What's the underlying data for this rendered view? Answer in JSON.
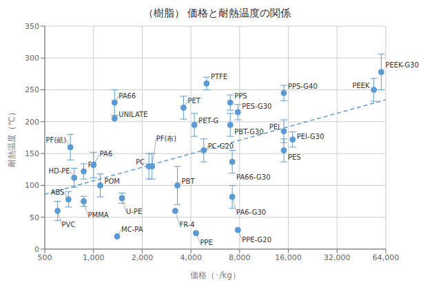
{
  "chart_data": {
    "type": "scatter",
    "title": "（樹脂） 価格と耐熱温度の関係",
    "xlabel": "価格（･/kg）",
    "ylabel": "耐熱温度（℃）",
    "log": "x",
    "grid": true,
    "color": "#5B9BD5",
    "xlim": [
      500,
      64000
    ],
    "ylim": [
      0,
      350
    ],
    "xticks": [
      500,
      {
        "value": 1000,
        "label": "1,000"
      },
      {
        "value": 2000,
        "label": "2,000"
      },
      {
        "value": 4000,
        "label": "4,000"
      },
      {
        "value": 8000,
        "label": "8,000"
      },
      {
        "value": 16000,
        "label": "16,000"
      },
      {
        "value": 32000,
        "label": "32,000"
      },
      {
        "value": 64000,
        "label": "64,000"
      }
    ],
    "yticks": [
      0,
      50,
      100,
      150,
      200,
      250,
      300,
      350
    ],
    "points": [
      {
        "label": "PVC",
        "x": 600,
        "y": 60,
        "yerr": 15
      },
      {
        "label": "ABS",
        "x": 700,
        "y": 78,
        "yerr": 12
      },
      {
        "label": "HD-PE",
        "x": 760,
        "y": 112,
        "yerr": 15
      },
      {
        "label": "PP",
        "x": 870,
        "y": 122,
        "yerr": 12
      },
      {
        "label": "PF(紙)",
        "x": 720,
        "y": 160,
        "yerr": 20
      },
      {
        "label": "PMMA",
        "x": 870,
        "y": 75,
        "yerr": 8
      },
      {
        "label": "PA6",
        "x": 1000,
        "y": 132,
        "yerr": 20
      },
      {
        "label": "POM",
        "x": 1100,
        "y": 100,
        "yerr": 18
      },
      {
        "label": "PA66",
        "x": 1350,
        "y": 230,
        "yerr": 20
      },
      {
        "label": "UNILATE",
        "x": 1350,
        "y": 205,
        "yerr": 0
      },
      {
        "label": "U-PE",
        "x": 1500,
        "y": 80,
        "yerr": 8
      },
      {
        "label": "MC-PA",
        "x": 1400,
        "y": 20,
        "yerr": 0
      },
      {
        "label": "PC",
        "x": 2200,
        "y": 130,
        "yerr": 20
      },
      {
        "label": "PF(布)",
        "x": 2300,
        "y": 130,
        "yerr": 20
      },
      {
        "label": "FR-4",
        "x": 3200,
        "y": 60,
        "yerr": 0
      },
      {
        "label": "PPE",
        "x": 4300,
        "y": 25,
        "yerr": 0
      },
      {
        "label": "PBT",
        "x": 3300,
        "y": 100,
        "yerr": 30
      },
      {
        "label": "PET",
        "x": 3600,
        "y": 222,
        "yerr": 18
      },
      {
        "label": "PET-G",
        "x": 4200,
        "y": 195,
        "yerr": 18
      },
      {
        "label": "PTFE",
        "x": 5000,
        "y": 260,
        "yerr": 10
      },
      {
        "label": "PC-G20",
        "x": 4800,
        "y": 155,
        "yerr": 18
      },
      {
        "label": "PA66-G30",
        "x": 7200,
        "y": 137,
        "yerr": 18
      },
      {
        "label": "PA6-G30",
        "x": 7200,
        "y": 82,
        "yerr": 18
      },
      {
        "label": "PPE-G20",
        "x": 7800,
        "y": 30,
        "yerr": 0
      },
      {
        "label": "PPS",
        "x": 7000,
        "y": 230,
        "yerr": 12
      },
      {
        "label": "PBT-G30",
        "x": 7000,
        "y": 195,
        "yerr": 18
      },
      {
        "label": "PES-G30",
        "x": 7800,
        "y": 215,
        "yerr": 12
      },
      {
        "label": "PES",
        "x": 15000,
        "y": 155,
        "yerr": 18
      },
      {
        "label": "PPS-G40",
        "x": 15000,
        "y": 245,
        "yerr": 12
      },
      {
        "label": "PEI",
        "x": 15000,
        "y": 185,
        "yerr": 18
      },
      {
        "label": "PEI-G30",
        "x": 17000,
        "y": 172,
        "yerr": 12
      },
      {
        "label": "PEEK",
        "x": 54000,
        "y": 250,
        "yerr": 18
      },
      {
        "label": "PEEK-G30",
        "x": 60000,
        "y": 278,
        "yerr": 28
      }
    ],
    "trend": {
      "x": [
        500,
        64000
      ],
      "values": [
        86.1,
        234.4
      ],
      "line_style": "dashed"
    }
  }
}
